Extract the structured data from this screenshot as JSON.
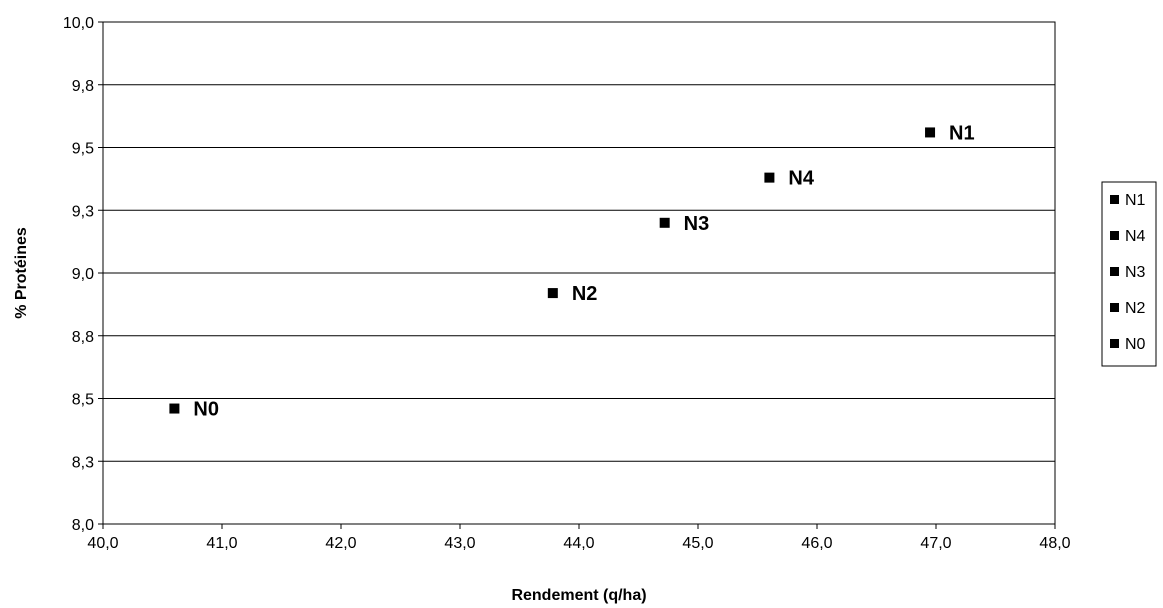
{
  "chart_data": {
    "type": "scatter",
    "xlabel": "Rendement (q/ha)",
    "ylabel": "% Protéines",
    "xlim": [
      40.0,
      48.0
    ],
    "ylim": [
      8.0,
      10.0
    ],
    "x_ticks": [
      "40,0",
      "41,0",
      "42,0",
      "43,0",
      "44,0",
      "45,0",
      "46,0",
      "47,0",
      "48,0"
    ],
    "y_ticks": [
      "8,0",
      "8,3",
      "8,5",
      "8,8",
      "9,0",
      "9,3",
      "9,5",
      "9,8",
      "10,0"
    ],
    "grid": "horizontal",
    "legend_position": "right",
    "marker": "square",
    "marker_color": "#000000",
    "series": [
      {
        "name": "N1",
        "x": 46.95,
        "y": 9.56
      },
      {
        "name": "N4",
        "x": 45.6,
        "y": 9.38
      },
      {
        "name": "N3",
        "x": 44.72,
        "y": 9.2
      },
      {
        "name": "N2",
        "x": 43.78,
        "y": 8.92
      },
      {
        "name": "N0",
        "x": 40.6,
        "y": 8.46
      }
    ]
  }
}
